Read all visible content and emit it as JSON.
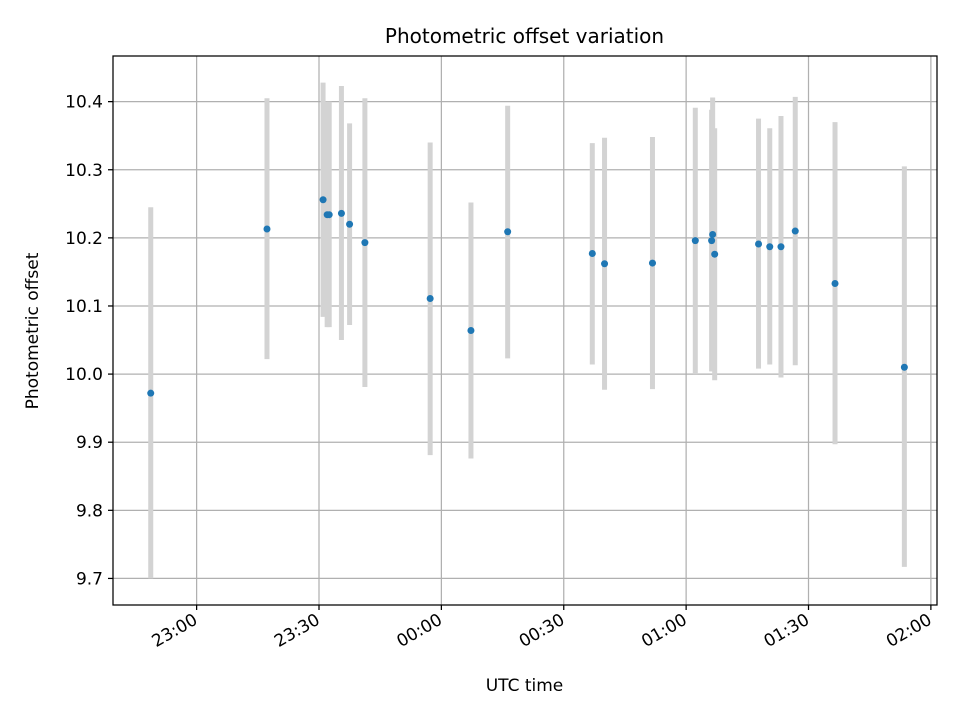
{
  "chart_data": {
    "type": "scatter",
    "title": "Photometric offset variation",
    "xlabel": "UTC time",
    "ylabel": "Photometric offset",
    "x_ticks": [
      "23:00",
      "23:30",
      "00:00",
      "00:30",
      "01:00",
      "01:30",
      "02:00"
    ],
    "x_tick_minutes": [
      0,
      30,
      60,
      90,
      120,
      150,
      180
    ],
    "xlim_minutes": [
      -20.5,
      181.5
    ],
    "y_ticks": [
      "9.7",
      "9.8",
      "9.9",
      "10.0",
      "10.1",
      "10.2",
      "10.3",
      "10.4"
    ],
    "y_tick_values": [
      9.7,
      9.8,
      9.9,
      10.0,
      10.1,
      10.2,
      10.3,
      10.4
    ],
    "ylim": [
      9.661,
      10.467
    ],
    "grid": true,
    "colors": {
      "points": "#1f77b4",
      "errorbars": "#d3d3d3",
      "grid": "#b0b0b0"
    },
    "series": [
      {
        "points": [
          {
            "time": "22:48:45",
            "y": 9.972,
            "ylow": 9.7,
            "yhigh": 10.245
          },
          {
            "time": "23:17:15",
            "y": 10.213,
            "ylow": 10.022,
            "yhigh": 10.405
          },
          {
            "time": "23:31:00",
            "y": 10.256,
            "ylow": 10.084,
            "yhigh": 10.428
          },
          {
            "time": "23:32:00",
            "y": 10.234,
            "ylow": 10.069,
            "yhigh": 10.4
          },
          {
            "time": "23:32:30",
            "y": 10.234,
            "ylow": 10.069,
            "yhigh": 10.4
          },
          {
            "time": "23:35:30",
            "y": 10.236,
            "ylow": 10.05,
            "yhigh": 10.423
          },
          {
            "time": "23:37:30",
            "y": 10.22,
            "ylow": 10.072,
            "yhigh": 10.368
          },
          {
            "time": "23:41:15",
            "y": 10.193,
            "ylow": 9.981,
            "yhigh": 10.405
          },
          {
            "time": "23:57:15",
            "y": 10.111,
            "ylow": 9.881,
            "yhigh": 10.34
          },
          {
            "time": "00:07:15",
            "y": 10.064,
            "ylow": 9.876,
            "yhigh": 10.252
          },
          {
            "time": "00:16:15",
            "y": 10.209,
            "ylow": 10.023,
            "yhigh": 10.394
          },
          {
            "time": "00:37:00",
            "y": 10.177,
            "ylow": 10.014,
            "yhigh": 10.339
          },
          {
            "time": "00:40:00",
            "y": 10.162,
            "ylow": 9.977,
            "yhigh": 10.347
          },
          {
            "time": "00:51:45",
            "y": 10.163,
            "ylow": 9.978,
            "yhigh": 10.348
          },
          {
            "time": "01:02:15",
            "y": 10.196,
            "ylow": 10.0,
            "yhigh": 10.391
          },
          {
            "time": "01:06:15",
            "y": 10.196,
            "ylow": 10.004,
            "yhigh": 10.388
          },
          {
            "time": "01:06:30",
            "y": 10.205,
            "ylow": 10.004,
            "yhigh": 10.406
          },
          {
            "time": "01:07:00",
            "y": 10.176,
            "ylow": 9.991,
            "yhigh": 10.361
          },
          {
            "time": "01:17:45",
            "y": 10.191,
            "ylow": 10.008,
            "yhigh": 10.375
          },
          {
            "time": "01:20:30",
            "y": 10.187,
            "ylow": 10.014,
            "yhigh": 10.361
          },
          {
            "time": "01:23:15",
            "y": 10.187,
            "ylow": 9.995,
            "yhigh": 10.379
          },
          {
            "time": "01:26:45",
            "y": 10.21,
            "ylow": 10.013,
            "yhigh": 10.407
          },
          {
            "time": "01:36:30",
            "y": 10.133,
            "ylow": 9.897,
            "yhigh": 10.37
          },
          {
            "time": "01:53:30",
            "y": 10.01,
            "ylow": 9.717,
            "yhigh": 10.305
          }
        ]
      }
    ]
  }
}
